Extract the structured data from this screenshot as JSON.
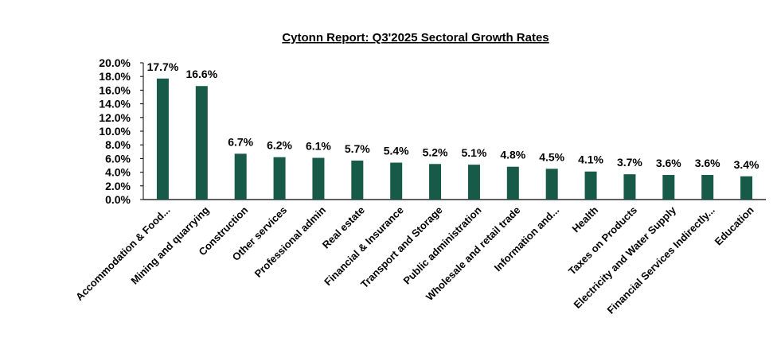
{
  "chart_data": {
    "type": "bar",
    "title": "Cytonn Report: Q3'2025 Sectoral Growth Rates",
    "xlabel": "",
    "ylabel": "",
    "ylim": [
      0,
      20
    ],
    "y_ticks": [
      0,
      2,
      4,
      6,
      8,
      10,
      12,
      14,
      16,
      18,
      20
    ],
    "y_tick_labels": [
      "0.0%",
      "2.0%",
      "4.0%",
      "6.0%",
      "8.0%",
      "10.0%",
      "12.0%",
      "14.0%",
      "16.0%",
      "18.0%",
      "20.0%"
    ],
    "grid": false,
    "legend": "none",
    "bar_color": "#165A47",
    "categories": [
      "Accommodation & Food...",
      "Mining and quarrying",
      "Construction",
      "Other services",
      "Professional admin",
      "Real estate",
      "Financial & Insurance",
      "Transport and Storage",
      "Public administration",
      "Wholesale and retail trade",
      "Information and...",
      "Health",
      "Taxes on Products",
      "Electricity and Water Supply",
      "Financial Services Indirectly...",
      "Education"
    ],
    "values": [
      17.7,
      16.6,
      6.7,
      6.2,
      6.1,
      5.7,
      5.4,
      5.2,
      5.1,
      4.8,
      4.5,
      4.1,
      3.7,
      3.6,
      3.6,
      3.4
    ],
    "data_labels": [
      "17.7%",
      "16.6%",
      "6.7%",
      "6.2%",
      "6.1%",
      "5.7%",
      "5.4%",
      "5.2%",
      "5.1%",
      "4.8%",
      "4.5%",
      "4.1%",
      "3.7%",
      "3.6%",
      "3.6%",
      "3.4%"
    ]
  }
}
